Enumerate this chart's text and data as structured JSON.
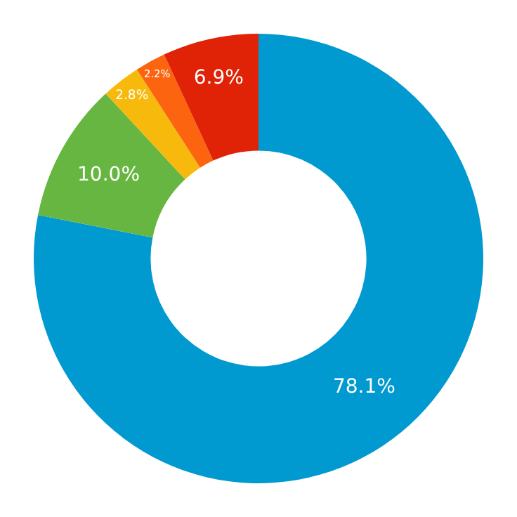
{
  "chart_data": {
    "type": "donut",
    "categories": [
      null,
      null,
      null,
      null,
      null
    ],
    "values": [
      78.1,
      10.0,
      2.8,
      2.2,
      6.9
    ],
    "value_labels": [
      "78.1%",
      "10.0%",
      "2.8%",
      "2.2%",
      "6.9%"
    ],
    "colors": [
      "#0099d0",
      "#66b641",
      "#f6b90c",
      "#fc6410",
      "#e02306"
    ]
  }
}
